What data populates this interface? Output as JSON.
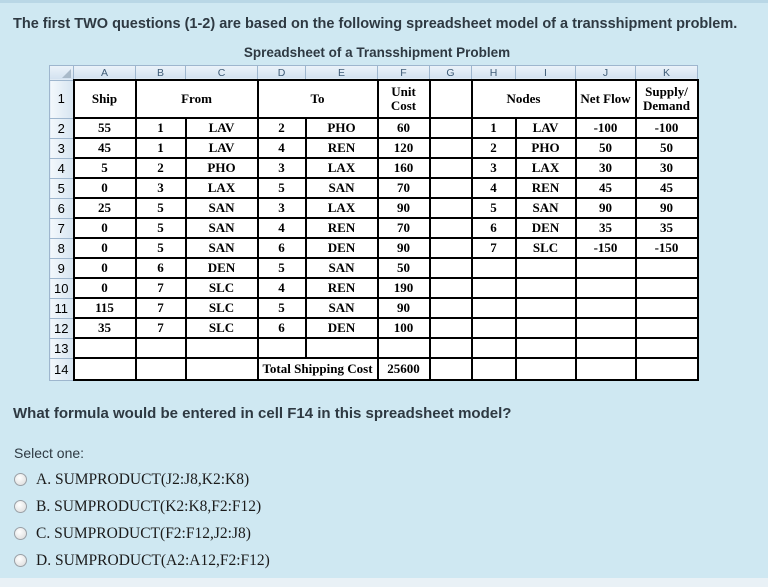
{
  "intro": "The first TWO questions (1-2) are based on the following spreadsheet model of a transshipment problem.",
  "spreadsheet": {
    "title": "Spreadsheet of a Transshipment Problem",
    "column_letters": [
      "A",
      "B",
      "C",
      "D",
      "E",
      "F",
      "G",
      "H",
      "I",
      "J",
      "K"
    ],
    "headers": {
      "row1_num": "1",
      "ship": "Ship",
      "from": "From",
      "to": "To",
      "unit_cost_line1": "Unit",
      "unit_cost_line2": "Cost",
      "nodes": "Nodes",
      "net_flow": "Net Flow",
      "supply_line1": "Supply/",
      "supply_line2": "Demand"
    },
    "rows": [
      {
        "num": "2",
        "a": "55",
        "b": "1",
        "c": "LAV",
        "d": "2",
        "e": "PHO",
        "f": "60",
        "g": "",
        "h": "1",
        "i": "LAV",
        "j": "-100",
        "k": "-100"
      },
      {
        "num": "3",
        "a": "45",
        "b": "1",
        "c": "LAV",
        "d": "4",
        "e": "REN",
        "f": "120",
        "g": "",
        "h": "2",
        "i": "PHO",
        "j": "50",
        "k": "50"
      },
      {
        "num": "4",
        "a": "5",
        "b": "2",
        "c": "PHO",
        "d": "3",
        "e": "LAX",
        "f": "160",
        "g": "",
        "h": "3",
        "i": "LAX",
        "j": "30",
        "k": "30"
      },
      {
        "num": "5",
        "a": "0",
        "b": "3",
        "c": "LAX",
        "d": "5",
        "e": "SAN",
        "f": "70",
        "g": "",
        "h": "4",
        "i": "REN",
        "j": "45",
        "k": "45"
      },
      {
        "num": "6",
        "a": "25",
        "b": "5",
        "c": "SAN",
        "d": "3",
        "e": "LAX",
        "f": "90",
        "g": "",
        "h": "5",
        "i": "SAN",
        "j": "90",
        "k": "90"
      },
      {
        "num": "7",
        "a": "0",
        "b": "5",
        "c": "SAN",
        "d": "4",
        "e": "REN",
        "f": "70",
        "g": "",
        "h": "6",
        "i": "DEN",
        "j": "35",
        "k": "35"
      },
      {
        "num": "8",
        "a": "0",
        "b": "5",
        "c": "SAN",
        "d": "6",
        "e": "DEN",
        "f": "90",
        "g": "",
        "h": "7",
        "i": "SLC",
        "j": "-150",
        "k": "-150"
      },
      {
        "num": "9",
        "a": "0",
        "b": "6",
        "c": "DEN",
        "d": "5",
        "e": "SAN",
        "f": "50",
        "g": "",
        "h": "",
        "i": "",
        "j": "",
        "k": ""
      },
      {
        "num": "10",
        "a": "0",
        "b": "7",
        "c": "SLC",
        "d": "4",
        "e": "REN",
        "f": "190",
        "g": "",
        "h": "",
        "i": "",
        "j": "",
        "k": ""
      },
      {
        "num": "11",
        "a": "115",
        "b": "7",
        "c": "SLC",
        "d": "5",
        "e": "SAN",
        "f": "90",
        "g": "",
        "h": "",
        "i": "",
        "j": "",
        "k": ""
      },
      {
        "num": "12",
        "a": "35",
        "b": "7",
        "c": "SLC",
        "d": "6",
        "e": "DEN",
        "f": "100",
        "g": "",
        "h": "",
        "i": "",
        "j": "",
        "k": ""
      },
      {
        "num": "13",
        "a": "",
        "b": "",
        "c": "",
        "d": "",
        "e": "",
        "f": "",
        "g": "",
        "h": "",
        "i": "",
        "j": "",
        "k": ""
      }
    ],
    "total_row": {
      "num": "14",
      "label": "Total Shipping Cost",
      "value": "25600"
    }
  },
  "question": {
    "text": "What formula would be entered in cell F14 in this spreadsheet model?",
    "select_prompt": "Select one:",
    "options": [
      "A. SUMPRODUCT(J2:J8,K2:K8)",
      "B. SUMPRODUCT(K2:K8,F2:F12)",
      "C. SUMPRODUCT(F2:F12,J2:J8)",
      "D. SUMPRODUCT(A2:A12,F2:F12)"
    ]
  },
  "colors": {
    "page_bg": "#cfe8f2",
    "chrome_border": "#9eb6ce",
    "chrome_text": "#3f5c77",
    "heading_text": "#2e3942",
    "grid_line": "#000000",
    "bottom_strip": "#e9f1f6"
  }
}
